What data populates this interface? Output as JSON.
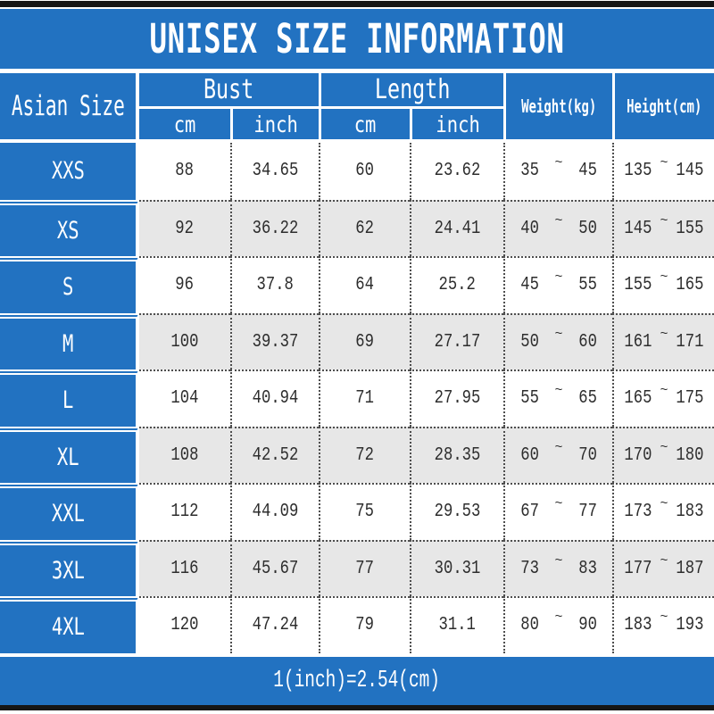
{
  "title": "UNISEX SIZE INFORMATION",
  "footer_note": "1(inch)=2.54(cm)",
  "tilde": "~",
  "colors": {
    "header_blue": "#2272c1",
    "alt_row_gray": "#e7e7e7",
    "top_bottom_bar": "#161616",
    "grid_dotted_line": "#4e4e4e",
    "data_text": "#2d2d2d",
    "header_text": "#ffffff"
  },
  "headers": {
    "asian_size": "Asian Size",
    "bust": "Bust",
    "length": "Length",
    "weight": "Weight(kg)",
    "height": "Height(cm)",
    "bust_cm": "cm",
    "bust_inch": "inch",
    "length_cm": "cm",
    "length_inch": "inch"
  },
  "chart_data": {
    "type": "table",
    "title": "UNISEX SIZE INFORMATION",
    "columns": [
      "Asian Size",
      "Bust cm",
      "Bust inch",
      "Length cm",
      "Length inch",
      "Weight(kg)",
      "Height(cm)"
    ],
    "rows": [
      {
        "size": "XXS",
        "bust_cm": "88",
        "bust_inch": "34.65",
        "length_cm": "60",
        "length_inch": "23.62",
        "weight_min": "35",
        "weight_max": "45",
        "height_min": "135",
        "height_max": "145"
      },
      {
        "size": "XS",
        "bust_cm": "92",
        "bust_inch": "36.22",
        "length_cm": "62",
        "length_inch": "24.41",
        "weight_min": "40",
        "weight_max": "50",
        "height_min": "145",
        "height_max": "155"
      },
      {
        "size": "S",
        "bust_cm": "96",
        "bust_inch": "37.8",
        "length_cm": "64",
        "length_inch": "25.2",
        "weight_min": "45",
        "weight_max": "55",
        "height_min": "155",
        "height_max": "165"
      },
      {
        "size": "M",
        "bust_cm": "100",
        "bust_inch": "39.37",
        "length_cm": "69",
        "length_inch": "27.17",
        "weight_min": "50",
        "weight_max": "60",
        "height_min": "161",
        "height_max": "171"
      },
      {
        "size": "L",
        "bust_cm": "104",
        "bust_inch": "40.94",
        "length_cm": "71",
        "length_inch": "27.95",
        "weight_min": "55",
        "weight_max": "65",
        "height_min": "165",
        "height_max": "175"
      },
      {
        "size": "XL",
        "bust_cm": "108",
        "bust_inch": "42.52",
        "length_cm": "72",
        "length_inch": "28.35",
        "weight_min": "60",
        "weight_max": "70",
        "height_min": "170",
        "height_max": "180"
      },
      {
        "size": "XXL",
        "bust_cm": "112",
        "bust_inch": "44.09",
        "length_cm": "75",
        "length_inch": "29.53",
        "weight_min": "67",
        "weight_max": "77",
        "height_min": "173",
        "height_max": "183"
      },
      {
        "size": "3XL",
        "bust_cm": "116",
        "bust_inch": "45.67",
        "length_cm": "77",
        "length_inch": "30.31",
        "weight_min": "73",
        "weight_max": "83",
        "height_min": "177",
        "height_max": "187"
      },
      {
        "size": "4XL",
        "bust_cm": "120",
        "bust_inch": "47.24",
        "length_cm": "79",
        "length_inch": "31.1",
        "weight_min": "80",
        "weight_max": "90",
        "height_min": "183",
        "height_max": "193"
      }
    ]
  }
}
